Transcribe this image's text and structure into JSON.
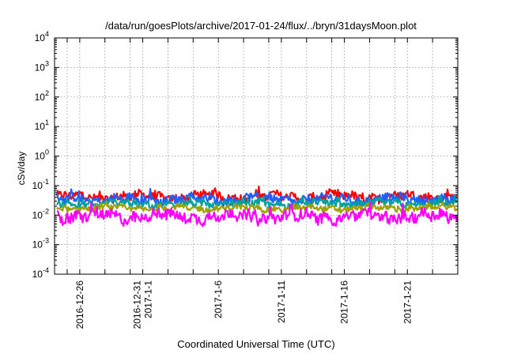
{
  "chart_data": {
    "type": "line",
    "title": "/data/run/goesPlots/archive/2017-01-24/flux/../bryn/31daysMoon.plot",
    "xlabel": "Coordinated Universal Time (UTC)",
    "ylabel": "cSv/day",
    "yscale": "log",
    "ylim": [
      0.0001,
      10000
    ],
    "y_ticks": [
      {
        "value": 0.0001,
        "base": "10",
        "exp": "-4"
      },
      {
        "value": 0.001,
        "base": "10",
        "exp": "-3"
      },
      {
        "value": 0.01,
        "base": "10",
        "exp": "-2"
      },
      {
        "value": 0.1,
        "base": "10",
        "exp": "-1"
      },
      {
        "value": 1,
        "base": "10",
        "exp": "0"
      },
      {
        "value": 10,
        "base": "10",
        "exp": "1"
      },
      {
        "value": 100,
        "base": "10",
        "exp": "2"
      },
      {
        "value": 1000,
        "base": "10",
        "exp": "3"
      },
      {
        "value": 10000,
        "base": "10",
        "exp": "4"
      }
    ],
    "xlim": [
      "2016-12-24",
      "2017-01-25"
    ],
    "x_tick_labels": [
      {
        "date": "2016-12-26",
        "lines": [
          "2016-12-26"
        ]
      },
      {
        "date": "2016-12-31",
        "lines": [
          "2016-12-31",
          "2017-1-1"
        ]
      },
      {
        "date": "2017-01-06",
        "lines": [
          "2017-1-6"
        ]
      },
      {
        "date": "2017-01-11",
        "lines": [
          "2017-1-11"
        ]
      },
      {
        "date": "2017-01-16",
        "lines": [
          "2017-1-16"
        ]
      },
      {
        "date": "2017-01-21",
        "lines": [
          "2017-1-21"
        ]
      }
    ],
    "x_grid_dates": [
      "2016-12-25",
      "2016-12-26",
      "2016-12-28",
      "2016-12-30",
      "2016-12-31",
      "2017-01-02",
      "2017-01-04",
      "2017-01-06",
      "2017-01-08",
      "2017-01-10",
      "2017-01-11",
      "2017-01-13",
      "2017-01-15",
      "2017-01-16",
      "2017-01-18",
      "2017-01-20",
      "2017-01-21",
      "2017-01-23"
    ],
    "grid": true,
    "series": [
      {
        "color": "#ff0000",
        "base": 0.042,
        "spread": 0.13
      },
      {
        "color": "#2060ff",
        "base": 0.034,
        "spread": 0.14
      },
      {
        "color": "#00a0a0",
        "base": 0.024,
        "spread": 0.11
      },
      {
        "color": "#a0a000",
        "base": 0.017,
        "spread": 0.09
      },
      {
        "color": "#ff00ff",
        "base": 0.009,
        "spread": 0.18
      }
    ]
  }
}
